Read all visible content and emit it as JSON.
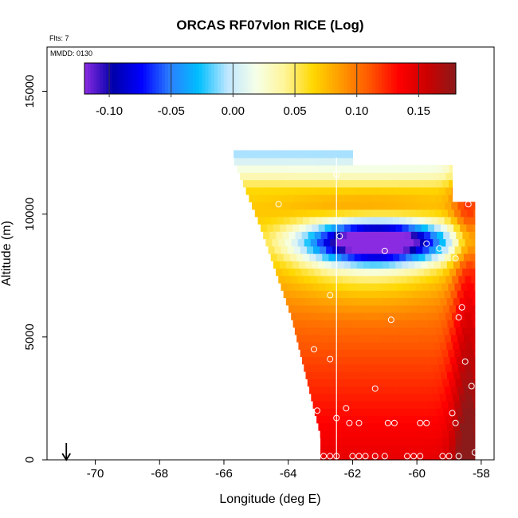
{
  "chart_data": {
    "type": "heatmap",
    "title": "ORCAS RF07vlon RICE (Log)",
    "annotation_flts": "Flts: 7",
    "annotation_mmdd": "MMDD: 0130",
    "xlabel": "Longitude (deg E)",
    "ylabel": "Altitude (m)",
    "xlim": [
      -71.5,
      -57.6
    ],
    "ylim": [
      0,
      16800
    ],
    "x_ticks": [
      -70,
      -68,
      -66,
      -64,
      -62,
      -60,
      -58
    ],
    "x_tick_labels": [
      "-70",
      "-68",
      "-66",
      "-64",
      "-62",
      "-60",
      "-58"
    ],
    "y_ticks": [
      0,
      5000,
      10000,
      15000
    ],
    "y_tick_labels": [
      "0",
      "5000",
      "10000",
      "15000"
    ],
    "colorbar": {
      "range": [
        -0.12,
        0.18
      ],
      "ticks": [
        -0.1,
        -0.05,
        0.0,
        0.05,
        0.1,
        0.15
      ],
      "tick_labels": [
        "-0.10",
        "-0.05",
        "0.00",
        "0.05",
        "0.10",
        "0.15"
      ],
      "colors": [
        "#8a2be2",
        "#0000aa",
        "#0000ff",
        "#2a7fff",
        "#00bfff",
        "#bfe6ff",
        "#f5ffe8",
        "#fff59a",
        "#ffd700",
        "#ff9900",
        "#ff5500",
        "#ff0000",
        "#cc0000",
        "#8b1a1a"
      ]
    },
    "vertical_line_lon": -62.5,
    "arrow_lon": -70.9,
    "grid": false,
    "field_description_points": [
      {
        "lon": -62.0,
        "alt": 9000,
        "value": -0.11
      },
      {
        "lon": -60.0,
        "alt": 8800,
        "value": -0.06
      },
      {
        "lon": -63.0,
        "alt": 12000,
        "value": 0.03
      },
      {
        "lon": -62.0,
        "alt": 5000,
        "value": 0.1
      },
      {
        "lon": -60.0,
        "alt": 1500,
        "value": 0.14
      },
      {
        "lon": -58.3,
        "alt": 5000,
        "value": 0.16
      }
    ],
    "sample_points": [
      {
        "lon": -64.3,
        "alt": 10400
      },
      {
        "lon": -62.4,
        "alt": 9100
      },
      {
        "lon": -61.0,
        "alt": 8500
      },
      {
        "lon": -59.7,
        "alt": 8800
      },
      {
        "lon": -59.3,
        "alt": 8600
      },
      {
        "lon": -58.8,
        "alt": 8200
      },
      {
        "lon": -58.4,
        "alt": 10400
      },
      {
        "lon": -62.7,
        "alt": 6700
      },
      {
        "lon": -60.8,
        "alt": 5700
      },
      {
        "lon": -58.6,
        "alt": 6200
      },
      {
        "lon": -58.7,
        "alt": 5800
      },
      {
        "lon": -63.2,
        "alt": 4500
      },
      {
        "lon": -62.7,
        "alt": 4100
      },
      {
        "lon": -58.5,
        "alt": 4000
      },
      {
        "lon": -61.3,
        "alt": 2900
      },
      {
        "lon": -58.3,
        "alt": 3000
      },
      {
        "lon": -62.2,
        "alt": 2100
      },
      {
        "lon": -63.1,
        "alt": 2000
      },
      {
        "lon": -62.5,
        "alt": 1700
      },
      {
        "lon": -61.8,
        "alt": 1500
      },
      {
        "lon": -62.1,
        "alt": 1500
      },
      {
        "lon": -60.9,
        "alt": 1500
      },
      {
        "lon": -60.7,
        "alt": 1500
      },
      {
        "lon": -59.9,
        "alt": 1500
      },
      {
        "lon": -59.7,
        "alt": 1500
      },
      {
        "lon": -58.9,
        "alt": 1900
      },
      {
        "lon": -58.8,
        "alt": 1500
      },
      {
        "lon": -62.9,
        "alt": 150
      },
      {
        "lon": -62.7,
        "alt": 150
      },
      {
        "lon": -62.5,
        "alt": 150
      },
      {
        "lon": -62.0,
        "alt": 150
      },
      {
        "lon": -61.8,
        "alt": 150
      },
      {
        "lon": -61.6,
        "alt": 150
      },
      {
        "lon": -61.3,
        "alt": 150
      },
      {
        "lon": -61.0,
        "alt": 150
      },
      {
        "lon": -60.3,
        "alt": 150
      },
      {
        "lon": -60.1,
        "alt": 150
      },
      {
        "lon": -59.9,
        "alt": 150
      },
      {
        "lon": -59.2,
        "alt": 150
      },
      {
        "lon": -59.0,
        "alt": 150
      },
      {
        "lon": -58.7,
        "alt": 150
      },
      {
        "lon": -58.2,
        "alt": 300
      },
      {
        "lon": -62.5,
        "alt": 11600
      }
    ]
  }
}
